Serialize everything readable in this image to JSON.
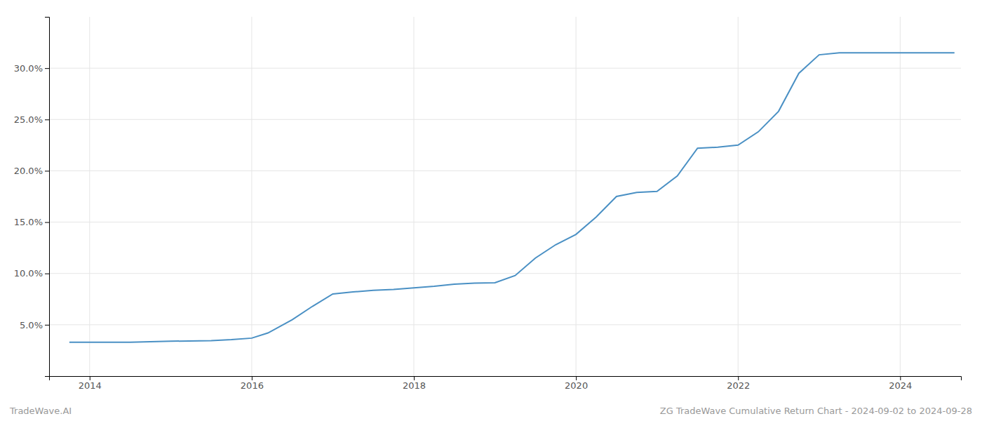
{
  "chart_data": {
    "type": "line",
    "x": [
      2013.75,
      2014.0,
      2014.5,
      2015.0,
      2015.5,
      2015.75,
      2016.0,
      2016.2,
      2016.5,
      2016.75,
      2017.0,
      2017.25,
      2017.5,
      2017.75,
      2018.0,
      2018.25,
      2018.5,
      2018.75,
      2019.0,
      2019.25,
      2019.5,
      2019.75,
      2020.0,
      2020.25,
      2020.5,
      2020.75,
      2021.0,
      2021.25,
      2021.5,
      2021.75,
      2022.0,
      2022.25,
      2022.5,
      2022.75,
      2023.0,
      2023.25,
      2023.5,
      2023.67,
      2024.0,
      2024.5,
      2024.67
    ],
    "values": [
      3.3,
      3.3,
      3.3,
      3.4,
      3.45,
      3.55,
      3.7,
      4.2,
      5.5,
      6.8,
      8.0,
      8.2,
      8.35,
      8.45,
      8.6,
      8.75,
      8.95,
      9.05,
      9.1,
      9.8,
      11.5,
      12.8,
      13.8,
      15.5,
      17.5,
      17.9,
      18.0,
      19.5,
      22.2,
      22.3,
      22.5,
      23.8,
      25.8,
      29.5,
      31.3,
      31.5,
      31.5,
      31.5,
      31.5,
      31.5,
      31.5
    ],
    "color": "#4a90c4",
    "xlim": [
      2013.5,
      2024.75
    ],
    "ylim": [
      0.0,
      35.0
    ],
    "xticks": [
      2014,
      2016,
      2018,
      2020,
      2022,
      2024
    ],
    "yticks": [
      {
        "value": 5.0,
        "label": "5.0%"
      },
      {
        "value": 10.0,
        "label": "10.0%"
      },
      {
        "value": 15.0,
        "label": "15.0%"
      },
      {
        "value": 20.0,
        "label": "20.0%"
      },
      {
        "value": 25.0,
        "label": "25.0%"
      },
      {
        "value": 30.0,
        "label": "30.0%"
      }
    ],
    "grid": true,
    "annotations": [
      "TradeWave.AI",
      "ZG TradeWave Cumulative Return Chart - 2024-09-02 to 2024-09-28"
    ]
  }
}
